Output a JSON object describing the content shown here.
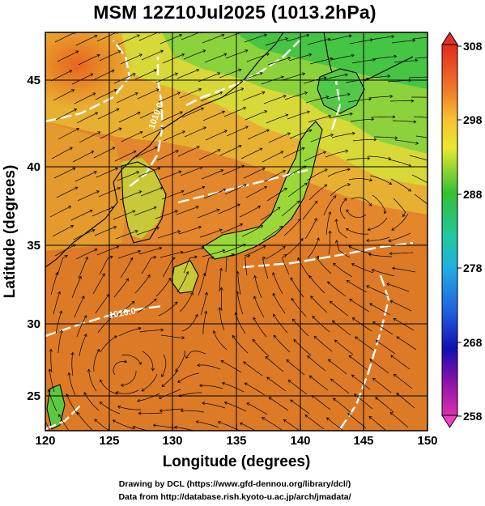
{
  "title": "MSM 12Z10Jul2025 (1013.2hPa)",
  "x_axis": {
    "label": "Longitude (degrees)",
    "ticks": [
      "120",
      "125",
      "130",
      "135",
      "140",
      "145",
      "150"
    ]
  },
  "y_axis": {
    "label": "Latitude  (degrees)",
    "ticks": [
      "25",
      "30",
      "35",
      "40",
      "45"
    ]
  },
  "colorbar": {
    "ticks": [
      "308",
      "298",
      "288",
      "278",
      "268",
      "258"
    ],
    "min": 258,
    "max": 308
  },
  "contour_labels": [
    "1010.0",
    "1010.0"
  ],
  "credits": {
    "line1": "Drawing by DCL (https://www.gfd-dennou.org/library/dcl/)",
    "line2": "Data from http://database.rish.kyoto-u.ac.jp/arch/jmadata/"
  },
  "colors": {
    "sea_warm": "#e07a2a",
    "land_cool": "#5cc840",
    "contour": "#ffffff",
    "streamline": "#000000"
  }
}
